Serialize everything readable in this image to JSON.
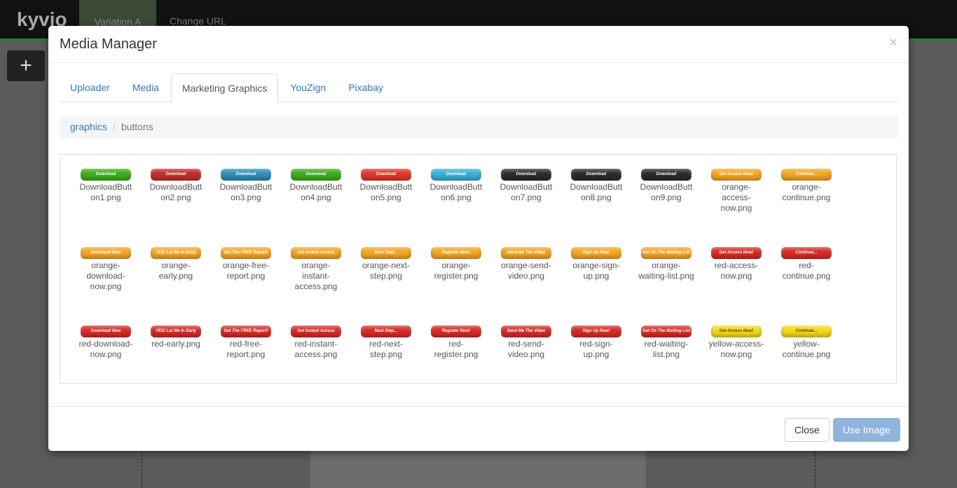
{
  "topbar": {
    "logo": "kyvio",
    "variation": "Variation A",
    "change_url": "Change URL"
  },
  "modal": {
    "title": "Media Manager",
    "close_icon": "×",
    "tabs": [
      "Uploader",
      "Media",
      "Marketing Graphics",
      "YouZign",
      "Pixabay"
    ],
    "active_tab": 2,
    "breadcrumb": [
      "graphics",
      "buttons"
    ],
    "items": [
      {
        "label": "Download",
        "color": "#3fae1c",
        "file": "DownloadButton1.png"
      },
      {
        "label": "Download",
        "color": "#c0302a",
        "file": "DownloadButton2.png"
      },
      {
        "label": "Download",
        "color": "#2f8fb5",
        "file": "DownloadButton3.png"
      },
      {
        "label": "Download",
        "color": "#3fae1c",
        "file": "DownloadButton4.png"
      },
      {
        "label": "Download",
        "color": "#e0382a",
        "file": "DownloadButton5.png"
      },
      {
        "label": "Download",
        "color": "#3ab0d8",
        "file": "DownloadButton6.png"
      },
      {
        "label": "Download",
        "color": "#2c2c2c",
        "file": "DownloadButton7.png"
      },
      {
        "label": "Download",
        "color": "#2c2c2c",
        "file": "DownloadButton8.png"
      },
      {
        "label": "Download",
        "color": "#2c2c2c",
        "file": "DownloadButton9.png"
      },
      {
        "label": "Get Access Now!",
        "color": "#f5a623",
        "file": "orange-access-now.png"
      },
      {
        "label": "Continue...",
        "color": "#f5a623",
        "file": "orange-continue.png"
      },
      {
        "label": "Download Now",
        "color": "#f5a623",
        "file": "orange-download-now.png"
      },
      {
        "label": "YES! Let Me In Early",
        "color": "#f5a623",
        "file": "orange-early.png"
      },
      {
        "label": "Get The FREE Report!",
        "color": "#f5a623",
        "file": "orange-free-report.png"
      },
      {
        "label": "Get Instant Access",
        "color": "#f5a623",
        "file": "orange-instant-access.png"
      },
      {
        "label": "Next Step...",
        "color": "#f5a623",
        "file": "orange-next-step.png"
      },
      {
        "label": "Register Now!",
        "color": "#f5a623",
        "file": "orange-register.png"
      },
      {
        "label": "Send Me The Video",
        "color": "#f5a623",
        "file": "orange-send-video.png"
      },
      {
        "label": "Sign Up Now!",
        "color": "#f5a623",
        "file": "orange-sign-up.png"
      },
      {
        "label": "Get On The Waiting List",
        "color": "#f5a623",
        "file": "orange-waiting-list.png"
      },
      {
        "label": "Get Access Now!",
        "color": "#d92b25",
        "file": "red-access-now.png"
      },
      {
        "label": "Continue...",
        "color": "#d92b25",
        "file": "red-continue.png"
      },
      {
        "label": "Download Now",
        "color": "#d92b25",
        "file": "red-download-now.png"
      },
      {
        "label": "YES! Let Me In Early",
        "color": "#d92b25",
        "file": "red-early.png"
      },
      {
        "label": "Get The FREE Report!",
        "color": "#d92b25",
        "file": "red-free-report.png"
      },
      {
        "label": "Get Instant Access",
        "color": "#d92b25",
        "file": "red-instant-access.png"
      },
      {
        "label": "Next Step...",
        "color": "#d92b25",
        "file": "red-next-step.png"
      },
      {
        "label": "Register Now!",
        "color": "#d92b25",
        "file": "red-register.png"
      },
      {
        "label": "Send Me The Video",
        "color": "#d92b25",
        "file": "red-send-video.png"
      },
      {
        "label": "Sign Up Now!",
        "color": "#d92b25",
        "file": "red-sign-up.png"
      },
      {
        "label": "Get On The Waiting List",
        "color": "#d92b25",
        "file": "red-waiting-list.png"
      },
      {
        "label": "Get Access Now!",
        "color": "#f2dc1a",
        "file": "yellow-access-now.png"
      },
      {
        "label": "Continue...",
        "color": "#f2dc1a",
        "file": "yellow-continue.png"
      }
    ],
    "buttons": {
      "close": "Close",
      "use": "Use Image"
    }
  }
}
